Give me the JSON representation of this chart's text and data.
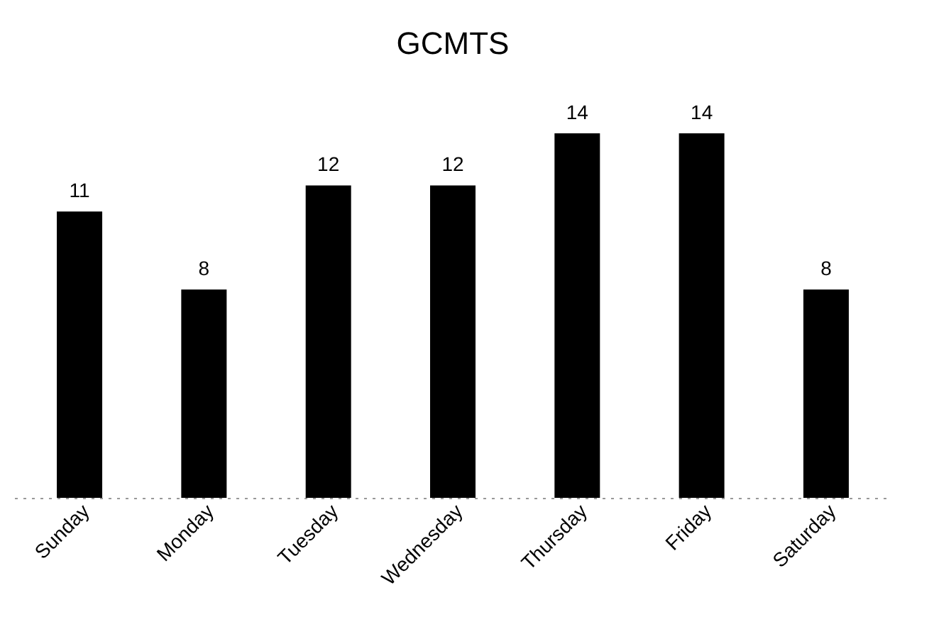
{
  "chart_data": {
    "type": "bar",
    "title": "GCMTS",
    "categories": [
      "Sunday",
      "Monday",
      "Tuesday",
      "Wednesday",
      "Thursday",
      "Friday",
      "Saturday"
    ],
    "values": [
      11,
      8,
      12,
      12,
      14,
      14,
      8
    ],
    "color": "#000000",
    "data_labels": true
  }
}
